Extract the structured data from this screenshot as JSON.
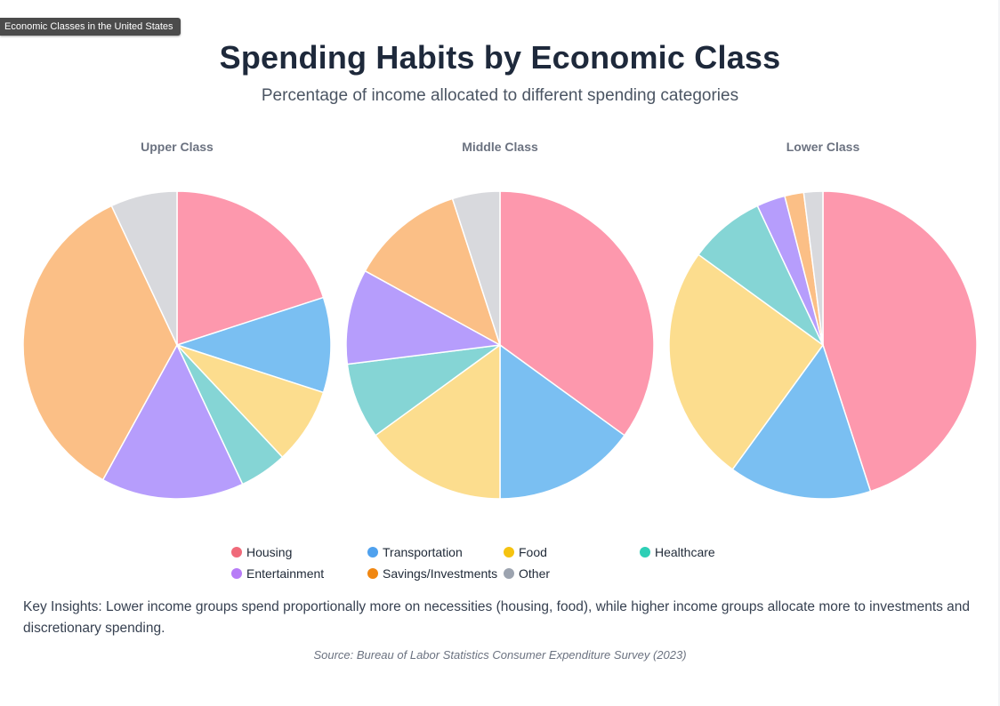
{
  "window": {
    "tooltip": "Economic Classes in the United States"
  },
  "header": {
    "title": "Spending Habits by Economic Class",
    "subtitle": "Percentage of income allocated to different spending categories"
  },
  "colors": {
    "Housing": "#fd98ad",
    "Transportation": "#7abff2",
    "Food": "#fcdd8e",
    "Healthcare": "#85d5d5",
    "Entertainment": "#b69dfc",
    "Savings/Investments": "#fbbf86",
    "Other": "#d8d9dd"
  },
  "legend_colors": {
    "Housing": "#f06a7a",
    "Transportation": "#4fa1ee",
    "Food": "#f5c310",
    "Healthcare": "#2ecfb6",
    "Entertainment": "#b77cf7",
    "Savings/Investments": "#f08712",
    "Other": "#9ca3af"
  },
  "chart_data": [
    {
      "type": "pie",
      "title": "Upper Class",
      "categories": [
        "Housing",
        "Transportation",
        "Food",
        "Healthcare",
        "Entertainment",
        "Savings/Investments",
        "Other"
      ],
      "values": [
        20,
        10,
        8,
        5,
        15,
        35,
        7
      ]
    },
    {
      "type": "pie",
      "title": "Middle Class",
      "categories": [
        "Housing",
        "Transportation",
        "Food",
        "Healthcare",
        "Entertainment",
        "Savings/Investments",
        "Other"
      ],
      "values": [
        35,
        15,
        15,
        8,
        10,
        12,
        5
      ]
    },
    {
      "type": "pie",
      "title": "Lower Class",
      "categories": [
        "Housing",
        "Transportation",
        "Food",
        "Healthcare",
        "Entertainment",
        "Savings/Investments",
        "Other"
      ],
      "values": [
        45,
        15,
        25,
        8,
        3,
        2,
        2
      ]
    }
  ],
  "legend": {
    "items": [
      "Housing",
      "Transportation",
      "Food",
      "Healthcare",
      "Entertainment",
      "Savings/Investments",
      "Other"
    ],
    "placement": "bottom"
  },
  "footer": {
    "insights": "Key Insights: Lower income groups spend proportionally more on necessities (housing, food), while higher income groups allocate more to investments and discretionary spending.",
    "source": "Source: Bureau of Labor Statistics Consumer Expenditure Survey (2023)"
  }
}
